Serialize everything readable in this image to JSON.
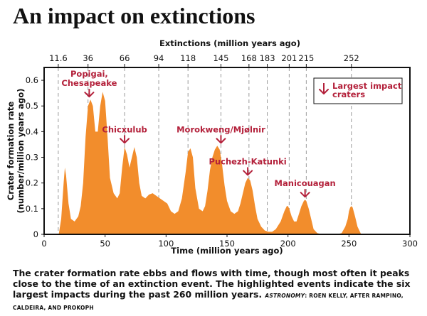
{
  "headline": "An impact on extinctions",
  "caption": "The crater formation rate ebbs and flows with time, though most often it peaks close to the time of an extinction event. The highlighted events indicate the six largest impacts during the past 260 million years.",
  "credit_pub": "ASTRONOMY",
  "credit_rest": ": ROEN KELLY, AFTER RAMPINO, CALDEIRA, AND PROKOPH",
  "colors": {
    "fill": "#f28d2c",
    "annotation": "#b3203a",
    "extinction_line": "#9a9a9a"
  },
  "chart_data": {
    "type": "area",
    "title": "",
    "xlabel": "Time (million years ago)",
    "ylabel_line1": "Crater formation rate",
    "ylabel_line2": "(number/million years ago)",
    "top_axis_label": "Extinctions (million years ago)",
    "xlim": [
      0,
      300
    ],
    "ylim": [
      0,
      0.65
    ],
    "x_ticks": [
      0,
      50,
      100,
      150,
      200,
      250,
      300
    ],
    "y_ticks": [
      0,
      0.1,
      0.2,
      0.3,
      0.4,
      0.5,
      0.6
    ],
    "y_tick_labels": [
      "0",
      "0.1",
      "0.2",
      "0.3",
      "0.4",
      "0.5",
      "0.6"
    ],
    "extinctions": [
      {
        "x": 11.6,
        "label": "11.6"
      },
      {
        "x": 36,
        "label": "36"
      },
      {
        "x": 66,
        "label": "66"
      },
      {
        "x": 94,
        "label": "94"
      },
      {
        "x": 118,
        "label": "118"
      },
      {
        "x": 145,
        "label": "145"
      },
      {
        "x": 168,
        "label": "168"
      },
      {
        "x": 183,
        "label": "183"
      },
      {
        "x": 201,
        "label": "201"
      },
      {
        "x": 215,
        "label": "215"
      },
      {
        "x": 252,
        "label": "252"
      }
    ],
    "series": [
      {
        "x": [
          12,
          14,
          16,
          17,
          18,
          20,
          22,
          25,
          28,
          30,
          32,
          34,
          36,
          38,
          40,
          42,
          44,
          46,
          48,
          50,
          52,
          54,
          57,
          60,
          62,
          64,
          66,
          68,
          70,
          72,
          74,
          76,
          78,
          80,
          83,
          86,
          89,
          92,
          95,
          98,
          101,
          104,
          107,
          110,
          113,
          116,
          118,
          120,
          122,
          124,
          127,
          130,
          132,
          134,
          136,
          138,
          140,
          142,
          144,
          146,
          148,
          150,
          153,
          156,
          159,
          161,
          163,
          165,
          167,
          169,
          171,
          173,
          175,
          178,
          181,
          184,
          187,
          190,
          194,
          197,
          199,
          200,
          201,
          203,
          205,
          207,
          209,
          211,
          213,
          214,
          215,
          217,
          219,
          221,
          224,
          228,
          232,
          236,
          240,
          244,
          247,
          249,
          250,
          251,
          252,
          253,
          255,
          257,
          260
        ],
        "y": [
          0,
          0.06,
          0.2,
          0.26,
          0.23,
          0.12,
          0.06,
          0.05,
          0.07,
          0.11,
          0.2,
          0.38,
          0.5,
          0.525,
          0.5,
          0.4,
          0.4,
          0.5,
          0.555,
          0.52,
          0.38,
          0.22,
          0.16,
          0.14,
          0.16,
          0.26,
          0.34,
          0.31,
          0.26,
          0.3,
          0.34,
          0.3,
          0.2,
          0.15,
          0.14,
          0.155,
          0.16,
          0.15,
          0.14,
          0.13,
          0.12,
          0.09,
          0.08,
          0.09,
          0.14,
          0.24,
          0.32,
          0.335,
          0.3,
          0.18,
          0.1,
          0.09,
          0.11,
          0.17,
          0.25,
          0.3,
          0.33,
          0.345,
          0.33,
          0.27,
          0.19,
          0.13,
          0.09,
          0.08,
          0.09,
          0.12,
          0.16,
          0.2,
          0.22,
          0.21,
          0.17,
          0.11,
          0.06,
          0.03,
          0.015,
          0.01,
          0.01,
          0.02,
          0.05,
          0.09,
          0.11,
          0.11,
          0.1,
          0.07,
          0.05,
          0.05,
          0.08,
          0.11,
          0.13,
          0.135,
          0.13,
          0.1,
          0.06,
          0.02,
          0.005,
          0,
          0,
          0,
          0,
          0.005,
          0.03,
          0.06,
          0.09,
          0.105,
          0.11,
          0.105,
          0.07,
          0.03,
          0
        ]
      }
    ],
    "annotations": [
      {
        "lines": [
          "Popigai,",
          "Chesapeake"
        ],
        "x": 37,
        "y": 0.525
      },
      {
        "lines": [
          "Chicxulub"
        ],
        "x": 66,
        "y": 0.345
      },
      {
        "lines": [
          "Morokweng/Mjølnir"
        ],
        "x": 145,
        "y": 0.345
      },
      {
        "lines": [
          "Puchezh-Katunki"
        ],
        "x": 167,
        "y": 0.22
      },
      {
        "lines": [
          "Manicouagan"
        ],
        "x": 214,
        "y": 0.135
      }
    ],
    "legend": {
      "lines": [
        "Largest impact",
        "craters"
      ],
      "position": "top-right"
    }
  }
}
